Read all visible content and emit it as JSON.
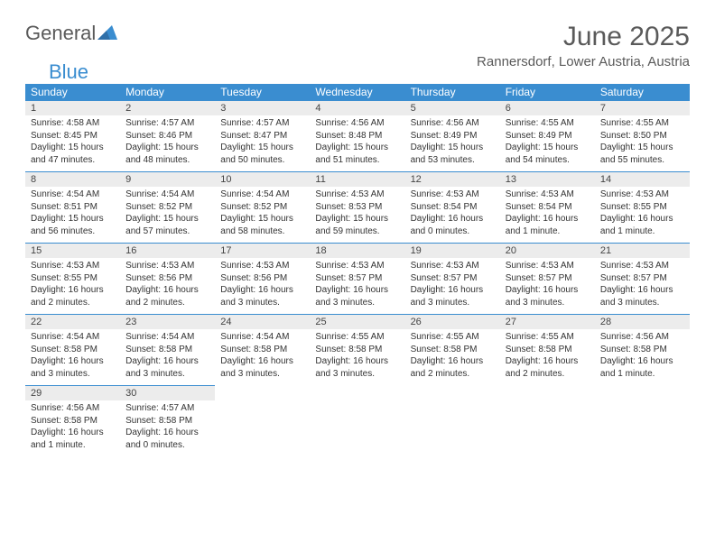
{
  "logo": {
    "text1": "General",
    "text2": "Blue"
  },
  "title": "June 2025",
  "location": "Rannersdorf, Lower Austria, Austria",
  "colors": {
    "header_bg": "#3a8dd0",
    "header_text": "#ffffff",
    "daynum_bg": "#ececec",
    "daynum_border": "#3a8dd0",
    "body_text": "#333333",
    "page_bg": "#ffffff"
  },
  "weekdays": [
    "Sunday",
    "Monday",
    "Tuesday",
    "Wednesday",
    "Thursday",
    "Friday",
    "Saturday"
  ],
  "labels": {
    "sunrise": "Sunrise:",
    "sunset": "Sunset:",
    "daylight": "Daylight:"
  },
  "days": [
    {
      "n": 1,
      "sunrise": "4:58 AM",
      "sunset": "8:45 PM",
      "daylight": "15 hours and 47 minutes."
    },
    {
      "n": 2,
      "sunrise": "4:57 AM",
      "sunset": "8:46 PM",
      "daylight": "15 hours and 48 minutes."
    },
    {
      "n": 3,
      "sunrise": "4:57 AM",
      "sunset": "8:47 PM",
      "daylight": "15 hours and 50 minutes."
    },
    {
      "n": 4,
      "sunrise": "4:56 AM",
      "sunset": "8:48 PM",
      "daylight": "15 hours and 51 minutes."
    },
    {
      "n": 5,
      "sunrise": "4:56 AM",
      "sunset": "8:49 PM",
      "daylight": "15 hours and 53 minutes."
    },
    {
      "n": 6,
      "sunrise": "4:55 AM",
      "sunset": "8:49 PM",
      "daylight": "15 hours and 54 minutes."
    },
    {
      "n": 7,
      "sunrise": "4:55 AM",
      "sunset": "8:50 PM",
      "daylight": "15 hours and 55 minutes."
    },
    {
      "n": 8,
      "sunrise": "4:54 AM",
      "sunset": "8:51 PM",
      "daylight": "15 hours and 56 minutes."
    },
    {
      "n": 9,
      "sunrise": "4:54 AM",
      "sunset": "8:52 PM",
      "daylight": "15 hours and 57 minutes."
    },
    {
      "n": 10,
      "sunrise": "4:54 AM",
      "sunset": "8:52 PM",
      "daylight": "15 hours and 58 minutes."
    },
    {
      "n": 11,
      "sunrise": "4:53 AM",
      "sunset": "8:53 PM",
      "daylight": "15 hours and 59 minutes."
    },
    {
      "n": 12,
      "sunrise": "4:53 AM",
      "sunset": "8:54 PM",
      "daylight": "16 hours and 0 minutes."
    },
    {
      "n": 13,
      "sunrise": "4:53 AM",
      "sunset": "8:54 PM",
      "daylight": "16 hours and 1 minute."
    },
    {
      "n": 14,
      "sunrise": "4:53 AM",
      "sunset": "8:55 PM",
      "daylight": "16 hours and 1 minute."
    },
    {
      "n": 15,
      "sunrise": "4:53 AM",
      "sunset": "8:55 PM",
      "daylight": "16 hours and 2 minutes."
    },
    {
      "n": 16,
      "sunrise": "4:53 AM",
      "sunset": "8:56 PM",
      "daylight": "16 hours and 2 minutes."
    },
    {
      "n": 17,
      "sunrise": "4:53 AM",
      "sunset": "8:56 PM",
      "daylight": "16 hours and 3 minutes."
    },
    {
      "n": 18,
      "sunrise": "4:53 AM",
      "sunset": "8:57 PM",
      "daylight": "16 hours and 3 minutes."
    },
    {
      "n": 19,
      "sunrise": "4:53 AM",
      "sunset": "8:57 PM",
      "daylight": "16 hours and 3 minutes."
    },
    {
      "n": 20,
      "sunrise": "4:53 AM",
      "sunset": "8:57 PM",
      "daylight": "16 hours and 3 minutes."
    },
    {
      "n": 21,
      "sunrise": "4:53 AM",
      "sunset": "8:57 PM",
      "daylight": "16 hours and 3 minutes."
    },
    {
      "n": 22,
      "sunrise": "4:54 AM",
      "sunset": "8:58 PM",
      "daylight": "16 hours and 3 minutes."
    },
    {
      "n": 23,
      "sunrise": "4:54 AM",
      "sunset": "8:58 PM",
      "daylight": "16 hours and 3 minutes."
    },
    {
      "n": 24,
      "sunrise": "4:54 AM",
      "sunset": "8:58 PM",
      "daylight": "16 hours and 3 minutes."
    },
    {
      "n": 25,
      "sunrise": "4:55 AM",
      "sunset": "8:58 PM",
      "daylight": "16 hours and 3 minutes."
    },
    {
      "n": 26,
      "sunrise": "4:55 AM",
      "sunset": "8:58 PM",
      "daylight": "16 hours and 2 minutes."
    },
    {
      "n": 27,
      "sunrise": "4:55 AM",
      "sunset": "8:58 PM",
      "daylight": "16 hours and 2 minutes."
    },
    {
      "n": 28,
      "sunrise": "4:56 AM",
      "sunset": "8:58 PM",
      "daylight": "16 hours and 1 minute."
    },
    {
      "n": 29,
      "sunrise": "4:56 AM",
      "sunset": "8:58 PM",
      "daylight": "16 hours and 1 minute."
    },
    {
      "n": 30,
      "sunrise": "4:57 AM",
      "sunset": "8:58 PM",
      "daylight": "16 hours and 0 minutes."
    }
  ],
  "start_weekday": 0,
  "rows": 5
}
